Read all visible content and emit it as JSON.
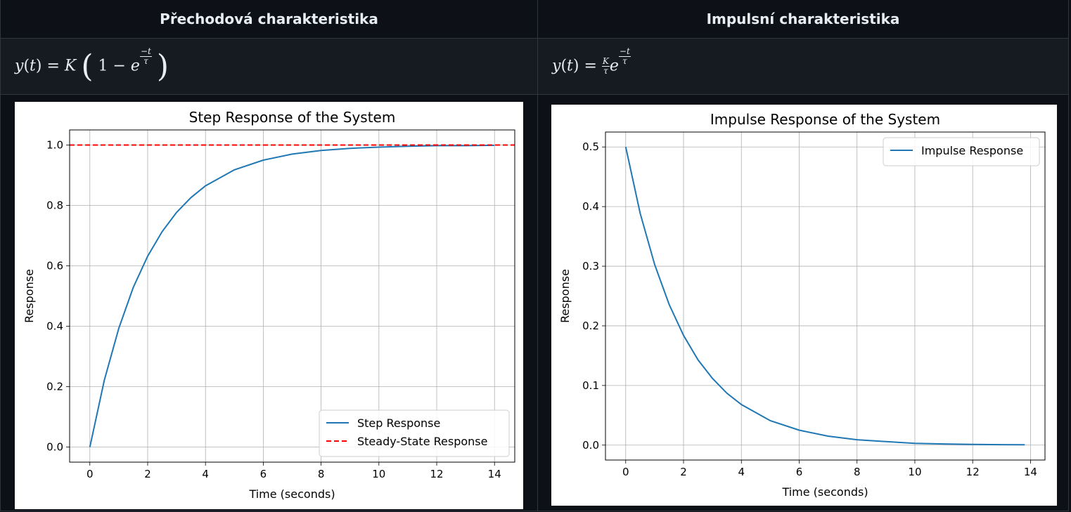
{
  "headers": {
    "left": "Přechodová charakteristika",
    "right": "Impulsní charakteristika"
  },
  "formulas": {
    "left": "y(t) = K(1 − e^(−t/τ))",
    "right": "y(t) = (K/τ)·e^(−t/τ)"
  },
  "chart_data": [
    {
      "type": "line",
      "title": "Step Response of the System",
      "xlabel": "Time (seconds)",
      "ylabel": "Response",
      "xlim": [
        -0.7,
        14.7
      ],
      "ylim": [
        -0.05,
        1.05
      ],
      "xticks": [
        0,
        2,
        4,
        6,
        8,
        10,
        12,
        14
      ],
      "yticks": [
        0.0,
        0.2,
        0.4,
        0.6,
        0.8,
        1.0
      ],
      "xticklabels": [
        "0",
        "2",
        "4",
        "6",
        "8",
        "10",
        "12",
        "14"
      ],
      "yticklabels": [
        "0.0",
        "0.2",
        "0.4",
        "0.6",
        "0.8",
        "1.0"
      ],
      "grid": true,
      "legend_position": "lower-right",
      "series": [
        {
          "name": "Step Response",
          "color": "#1f77b4",
          "style": "solid",
          "x": [
            0,
            0.5,
            1,
            1.5,
            2,
            2.5,
            3,
            3.5,
            4,
            5,
            6,
            7,
            8,
            9,
            10,
            11,
            12,
            13,
            14
          ],
          "y": [
            0,
            0.221,
            0.393,
            0.528,
            0.632,
            0.713,
            0.777,
            0.826,
            0.865,
            0.918,
            0.95,
            0.97,
            0.982,
            0.989,
            0.993,
            0.996,
            0.998,
            0.998,
            0.999
          ]
        },
        {
          "name": "Steady-State Response",
          "color": "#ff0000",
          "style": "dashed",
          "x": [
            -0.7,
            14.7
          ],
          "y": [
            1.0,
            1.0
          ]
        }
      ]
    },
    {
      "type": "line",
      "title": "Impulse Response of the System",
      "xlabel": "Time (seconds)",
      "ylabel": "Response",
      "xlim": [
        -0.7,
        14.5
      ],
      "ylim": [
        -0.025,
        0.525
      ],
      "xticks": [
        0,
        2,
        4,
        6,
        8,
        10,
        12,
        14
      ],
      "yticks": [
        0.0,
        0.1,
        0.2,
        0.3,
        0.4,
        0.5
      ],
      "xticklabels": [
        "0",
        "2",
        "4",
        "6",
        "8",
        "10",
        "12",
        "14"
      ],
      "yticklabels": [
        "0.0",
        "0.1",
        "0.2",
        "0.3",
        "0.4",
        "0.5"
      ],
      "grid": true,
      "legend_position": "upper-right",
      "series": [
        {
          "name": "Impulse Response",
          "color": "#1f77b4",
          "style": "solid",
          "x": [
            0,
            0.5,
            1,
            1.5,
            2,
            2.5,
            3,
            3.5,
            4,
            5,
            6,
            7,
            8,
            9,
            10,
            11,
            12,
            13,
            13.8
          ],
          "y": [
            0.5,
            0.389,
            0.303,
            0.236,
            0.184,
            0.143,
            0.112,
            0.087,
            0.068,
            0.041,
            0.025,
            0.015,
            0.009,
            0.006,
            0.003,
            0.002,
            0.0012,
            0.0008,
            0.0005
          ]
        }
      ]
    }
  ]
}
